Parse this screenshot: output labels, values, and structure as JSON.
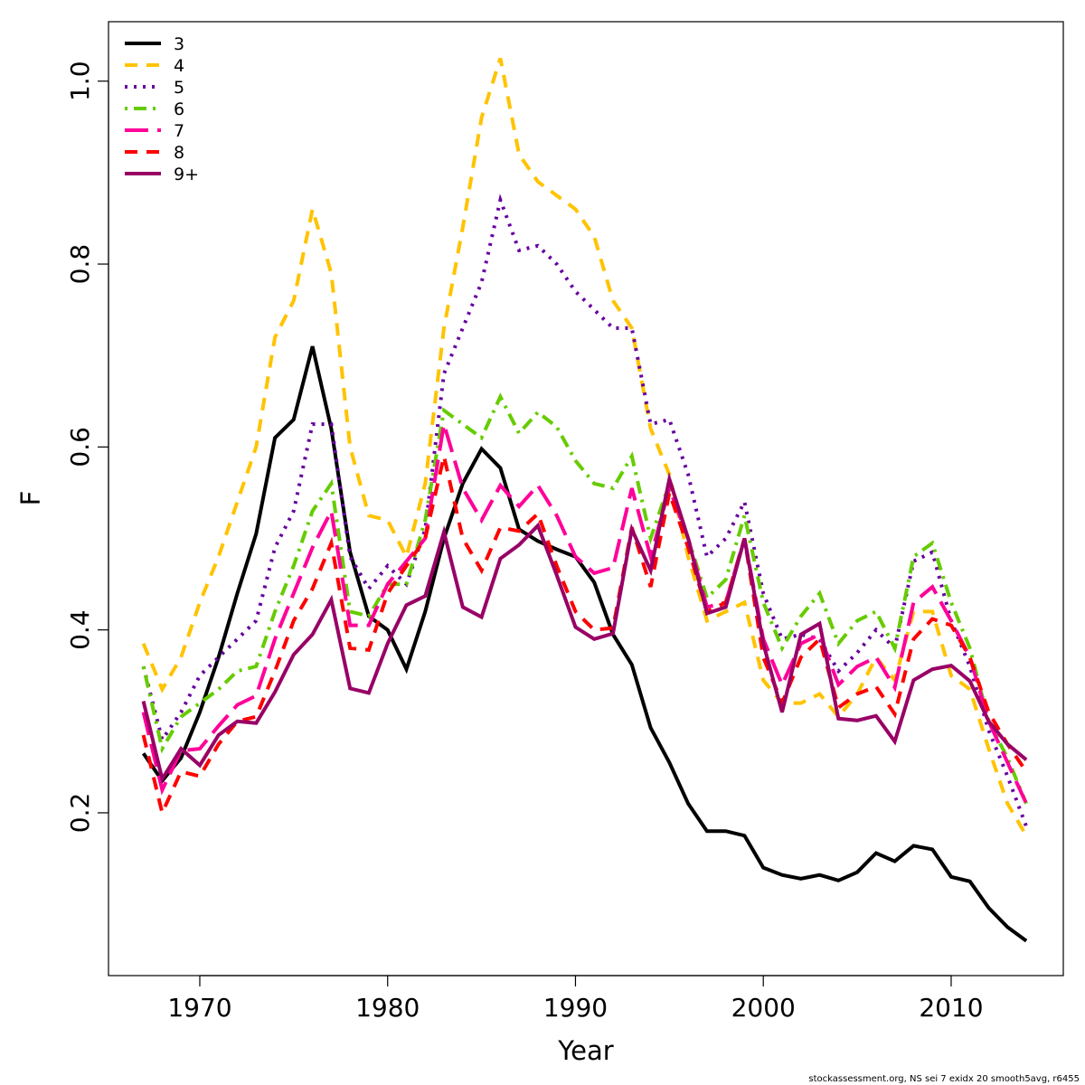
{
  "chart_data": {
    "type": "line",
    "xlabel": "Year",
    "ylabel": "F",
    "caption": "stockassessment.org, NS sei 7 exidx 20 smooth5avg, r6455",
    "x": [
      1967,
      1968,
      1969,
      1970,
      1971,
      1972,
      1973,
      1974,
      1975,
      1976,
      1977,
      1978,
      1979,
      1980,
      1981,
      1982,
      1983,
      1984,
      1985,
      1986,
      1987,
      1988,
      1989,
      1990,
      1991,
      1992,
      1993,
      1994,
      1995,
      1996,
      1997,
      1998,
      1999,
      2000,
      2001,
      2002,
      2003,
      2004,
      2005,
      2006,
      2007,
      2008,
      2009,
      2010,
      2011,
      2012,
      2013,
      2014
    ],
    "xlim": [
      1965.14,
      2015.97
    ],
    "xticks": [
      1970,
      1980,
      1990,
      2000,
      2010
    ],
    "ylim": [
      0.022,
      1.065
    ],
    "yticks": [
      0.2,
      0.4,
      0.6,
      0.8,
      {
        "value": 1.0,
        "label": "1.0"
      }
    ],
    "legend": "top-left",
    "series": [
      {
        "name": "3",
        "color": "#000000",
        "dash": "solid",
        "values": [
          0.265,
          0.235,
          0.26,
          0.31,
          0.37,
          0.44,
          0.505,
          0.61,
          0.63,
          0.71,
          0.62,
          0.485,
          0.415,
          0.4,
          0.357,
          0.42,
          0.5,
          0.56,
          0.598,
          0.577,
          0.51,
          0.497,
          0.488,
          0.48,
          0.452,
          0.395,
          0.362,
          0.293,
          0.255,
          0.21,
          0.18,
          0.18,
          0.175,
          0.14,
          0.132,
          0.128,
          0.132,
          0.126,
          0.135,
          0.156,
          0.147,
          0.164,
          0.16,
          0.13,
          0.125,
          0.096,
          0.075,
          0.06
        ]
      },
      {
        "name": "4",
        "color": "#FFC300",
        "dash": "dashed",
        "values": [
          0.385,
          0.335,
          0.37,
          0.43,
          0.48,
          0.54,
          0.6,
          0.72,
          0.76,
          0.86,
          0.79,
          0.6,
          0.525,
          0.52,
          0.48,
          0.56,
          0.73,
          0.84,
          0.96,
          1.025,
          0.92,
          0.89,
          0.875,
          0.86,
          0.83,
          0.76,
          0.73,
          0.62,
          0.57,
          0.48,
          0.41,
          0.42,
          0.43,
          0.345,
          0.32,
          0.32,
          0.33,
          0.305,
          0.33,
          0.37,
          0.345,
          0.42,
          0.42,
          0.35,
          0.335,
          0.27,
          0.21,
          0.175
        ]
      },
      {
        "name": "5",
        "color": "#6600A0",
        "dash": "dotted",
        "values": [
          0.36,
          0.28,
          0.31,
          0.35,
          0.37,
          0.39,
          0.41,
          0.49,
          0.53,
          0.625,
          0.625,
          0.48,
          0.445,
          0.47,
          0.45,
          0.51,
          0.68,
          0.73,
          0.78,
          0.87,
          0.815,
          0.82,
          0.8,
          0.77,
          0.75,
          0.73,
          0.73,
          0.625,
          0.63,
          0.57,
          0.48,
          0.5,
          0.54,
          0.44,
          0.39,
          0.395,
          0.39,
          0.355,
          0.375,
          0.4,
          0.38,
          0.475,
          0.485,
          0.41,
          0.36,
          0.29,
          0.24,
          0.185
        ]
      },
      {
        "name": "6",
        "color": "#66CC00",
        "dash": "dotdash",
        "values": [
          0.36,
          0.27,
          0.305,
          0.32,
          0.335,
          0.355,
          0.36,
          0.42,
          0.47,
          0.53,
          0.56,
          0.42,
          0.415,
          0.45,
          0.45,
          0.52,
          0.64,
          0.625,
          0.61,
          0.655,
          0.615,
          0.638,
          0.622,
          0.585,
          0.56,
          0.555,
          0.59,
          0.5,
          0.56,
          0.5,
          0.435,
          0.455,
          0.525,
          0.43,
          0.38,
          0.415,
          0.44,
          0.385,
          0.41,
          0.42,
          0.38,
          0.48,
          0.495,
          0.43,
          0.38,
          0.3,
          0.26,
          0.21
        ]
      },
      {
        "name": "7",
        "color": "#FF0099",
        "dash": "longdash",
        "values": [
          0.31,
          0.225,
          0.268,
          0.27,
          0.295,
          0.318,
          0.328,
          0.39,
          0.44,
          0.49,
          0.53,
          0.405,
          0.405,
          0.45,
          0.475,
          0.5,
          0.625,
          0.555,
          0.52,
          0.558,
          0.535,
          0.558,
          0.525,
          0.48,
          0.462,
          0.468,
          0.555,
          0.48,
          0.555,
          0.5,
          0.425,
          0.43,
          0.5,
          0.39,
          0.34,
          0.385,
          0.395,
          0.34,
          0.36,
          0.37,
          0.337,
          0.43,
          0.447,
          0.41,
          0.37,
          0.3,
          0.255,
          0.21
        ]
      },
      {
        "name": "8",
        "color": "#FF0000",
        "dash": "dashed",
        "values": [
          0.285,
          0.2,
          0.245,
          0.24,
          0.275,
          0.3,
          0.305,
          0.355,
          0.41,
          0.445,
          0.495,
          0.38,
          0.378,
          0.44,
          0.47,
          0.5,
          0.59,
          0.5,
          0.465,
          0.512,
          0.508,
          0.527,
          0.47,
          0.42,
          0.4,
          0.402,
          0.512,
          0.447,
          0.55,
          0.49,
          0.42,
          0.43,
          0.5,
          0.37,
          0.32,
          0.37,
          0.39,
          0.315,
          0.33,
          0.338,
          0.308,
          0.39,
          0.412,
          0.405,
          0.37,
          0.31,
          0.275,
          0.245
        ]
      },
      {
        "name": "9+",
        "color": "#990066",
        "dash": "solid",
        "values": [
          0.322,
          0.237,
          0.27,
          0.252,
          0.285,
          0.3,
          0.298,
          0.332,
          0.373,
          0.395,
          0.433,
          0.336,
          0.331,
          0.385,
          0.427,
          0.437,
          0.507,
          0.425,
          0.414,
          0.478,
          0.493,
          0.514,
          0.46,
          0.403,
          0.39,
          0.396,
          0.51,
          0.465,
          0.565,
          0.5,
          0.418,
          0.425,
          0.5,
          0.385,
          0.31,
          0.395,
          0.407,
          0.303,
          0.301,
          0.306,
          0.278,
          0.345,
          0.357,
          0.361,
          0.344,
          0.3,
          0.275,
          0.258
        ]
      }
    ]
  }
}
